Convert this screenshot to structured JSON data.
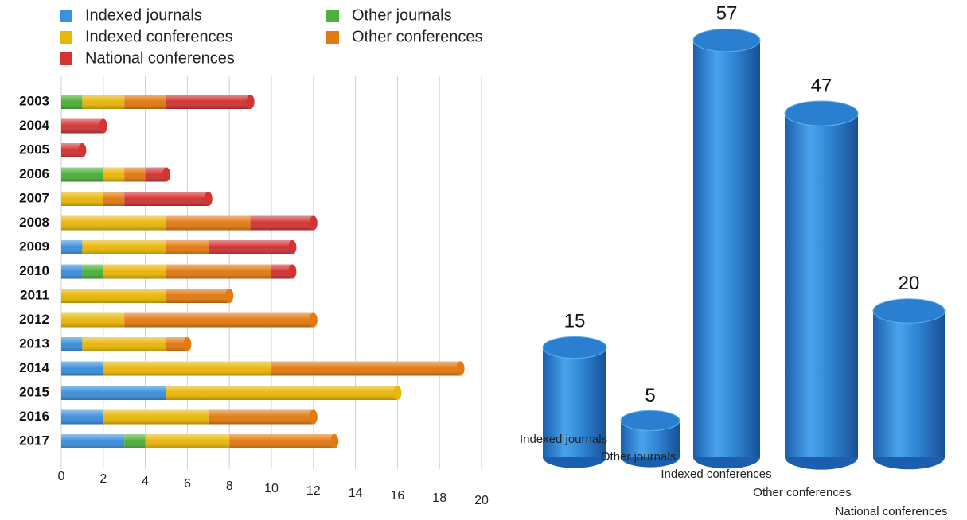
{
  "chart_data": [
    {
      "type": "stacked-bar-horizontal",
      "categories": [
        "2003",
        "2004",
        "2005",
        "2006",
        "2007",
        "2008",
        "2009",
        "2010",
        "2011",
        "2012",
        "2013",
        "2014",
        "2015",
        "2016",
        "2017"
      ],
      "series": [
        {
          "name": "Indexed journals",
          "color": "#3b8fdc",
          "values": [
            0,
            0,
            0,
            0,
            0,
            0,
            1,
            1,
            0,
            0,
            1,
            2,
            5,
            2,
            3
          ]
        },
        {
          "name": "Other journals",
          "color": "#4db03a",
          "values": [
            1,
            0,
            0,
            2,
            0,
            0,
            0,
            1,
            0,
            0,
            0,
            0,
            0,
            0,
            1
          ]
        },
        {
          "name": "Indexed conferences",
          "color": "#e9b60a",
          "values": [
            2,
            0,
            0,
            1,
            2,
            5,
            4,
            3,
            5,
            3,
            4,
            8,
            11,
            5,
            4
          ]
        },
        {
          "name": "Other conferences",
          "color": "#e27a12",
          "values": [
            2,
            0,
            0,
            1,
            1,
            4,
            2,
            5,
            3,
            9,
            1,
            9,
            0,
            5,
            5
          ]
        },
        {
          "name": "National conferences",
          "color": "#d23434",
          "values": [
            4,
            2,
            1,
            1,
            4,
            3,
            4,
            1,
            0,
            0,
            0,
            0,
            0,
            0,
            0
          ]
        }
      ],
      "xlim": [
        0,
        20
      ],
      "xticks": [
        0,
        2,
        4,
        6,
        8,
        10,
        12,
        14,
        16,
        18,
        20
      ],
      "grid": true
    },
    {
      "type": "cylinder",
      "categories": [
        "Indexed journals",
        "Other journals",
        "Indexed conferences",
        "Other conferences",
        "National conferences"
      ],
      "values": [
        15,
        5,
        57,
        47,
        20
      ],
      "color": "#2f86d8"
    }
  ]
}
